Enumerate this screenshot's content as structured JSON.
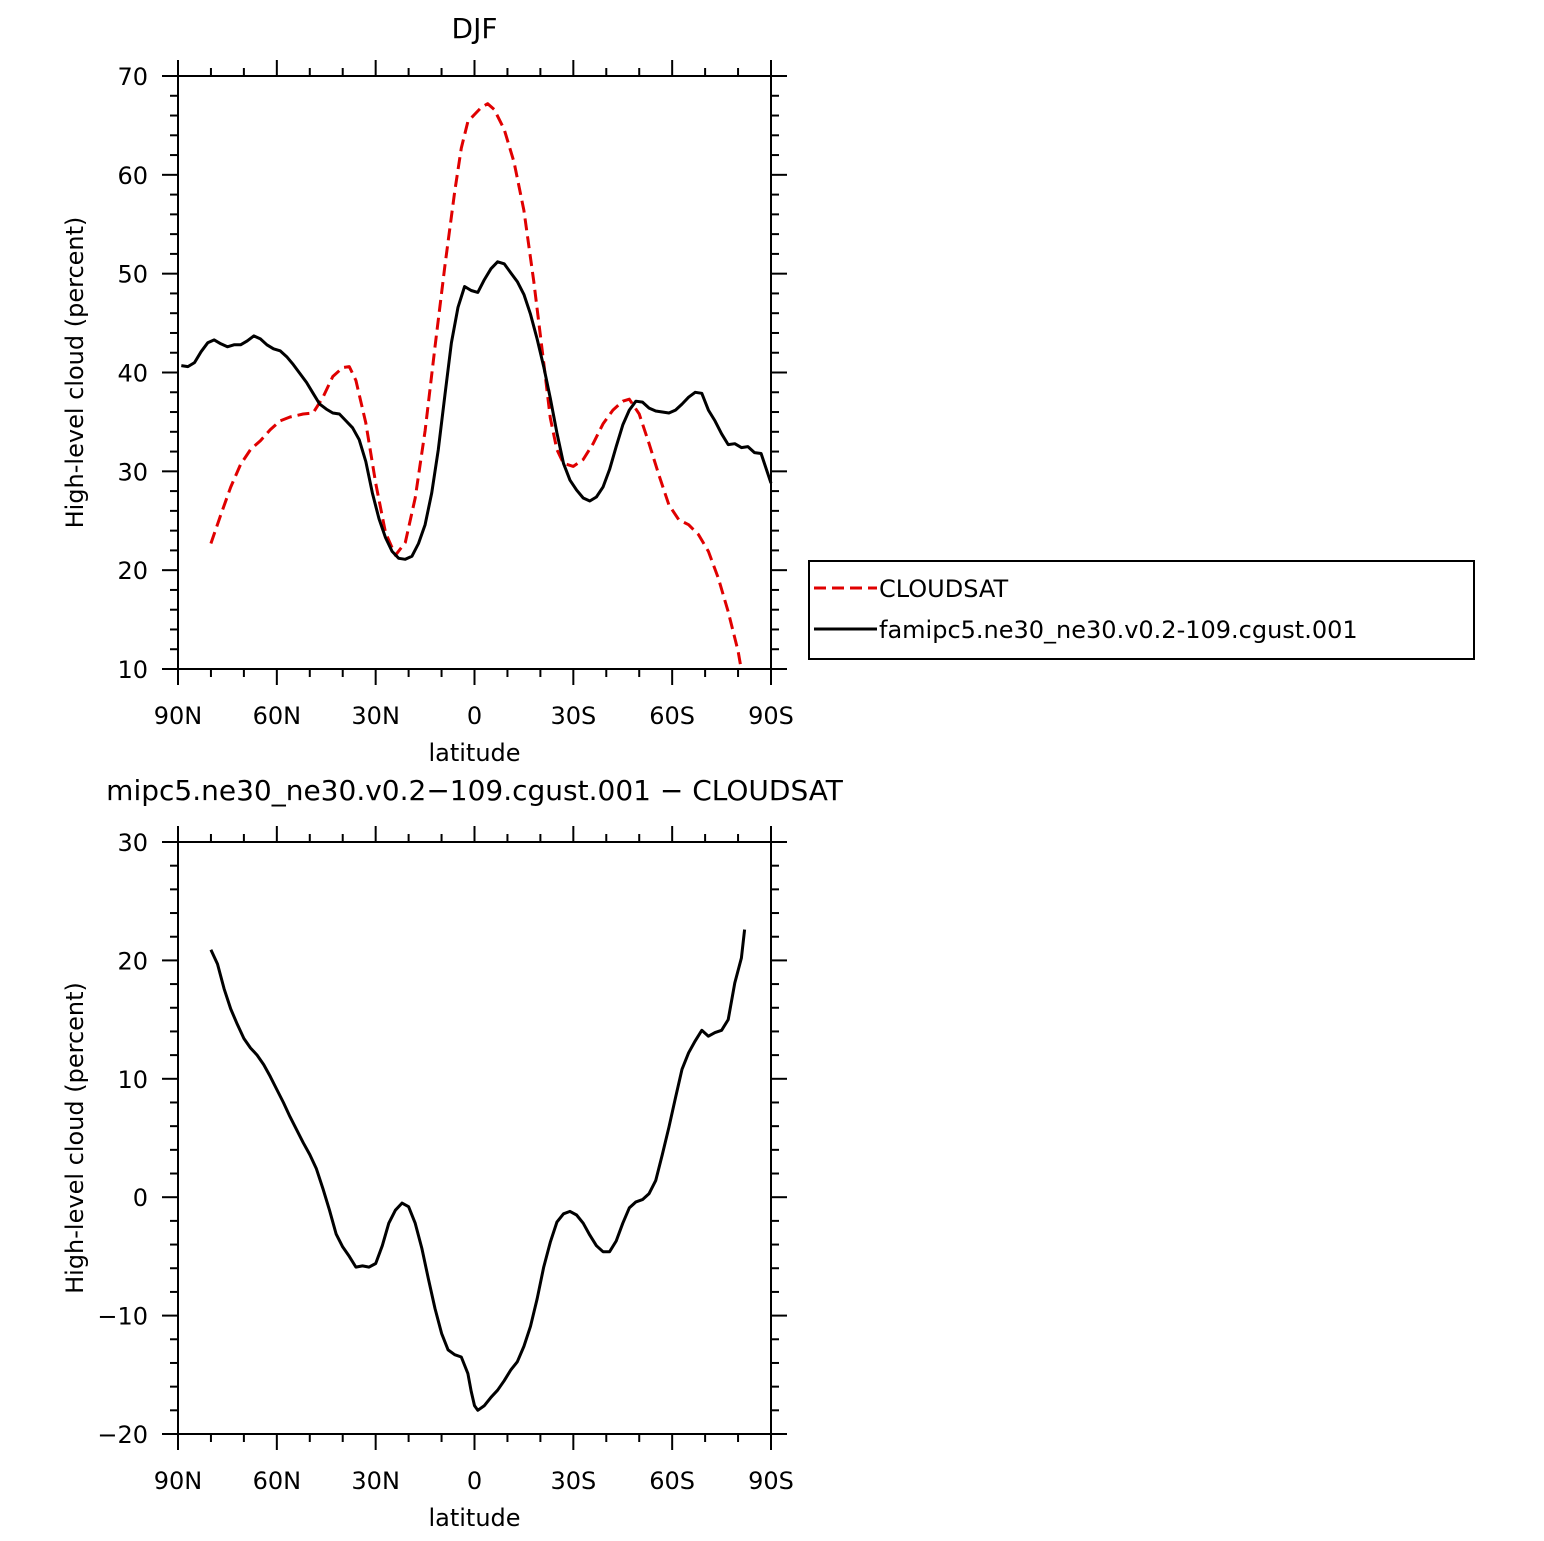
{
  "chart_data": [
    {
      "type": "line",
      "title": "DJF",
      "xlabel": "latitude",
      "ylabel": "High-level cloud (percent)",
      "xlim": [
        -90,
        90
      ],
      "ylim": [
        10,
        70
      ],
      "x_ticks": [
        {
          "value": -90,
          "label": "90N"
        },
        {
          "value": -60,
          "label": "60N"
        },
        {
          "value": -30,
          "label": "30N"
        },
        {
          "value": 0,
          "label": "0"
        },
        {
          "value": 30,
          "label": "30S"
        },
        {
          "value": 60,
          "label": "60S"
        },
        {
          "value": 90,
          "label": "90S"
        }
      ],
      "y_ticks": [
        {
          "value": 10,
          "label": "10"
        },
        {
          "value": 20,
          "label": "20"
        },
        {
          "value": 30,
          "label": "30"
        },
        {
          "value": 40,
          "label": "40"
        },
        {
          "value": 50,
          "label": "50"
        },
        {
          "value": 60,
          "label": "60"
        },
        {
          "value": 70,
          "label": "70"
        }
      ],
      "legend": "right",
      "series": [
        {
          "name": "CLOUDSAT",
          "color": "#e00000",
          "style": "dashed",
          "points": [
            [
              -80,
              22.7
            ],
            [
              -77,
              25.6
            ],
            [
              -74,
              28.4
            ],
            [
              -71,
              30.7
            ],
            [
              -68,
              32.2
            ],
            [
              -65,
              33.1
            ],
            [
              -62,
              34.2
            ],
            [
              -59,
              35.1
            ],
            [
              -56,
              35.5
            ],
            [
              -52,
              35.8
            ],
            [
              -49,
              35.9
            ],
            [
              -46,
              37.5
            ],
            [
              -43,
              39.6
            ],
            [
              -40,
              40.5
            ],
            [
              -38,
              40.6
            ],
            [
              -36,
              39.2
            ],
            [
              -33,
              34.9
            ],
            [
              -30,
              28.8
            ],
            [
              -27,
              23.8
            ],
            [
              -24,
              21.5
            ],
            [
              -21,
              22.8
            ],
            [
              -18,
              27.3
            ],
            [
              -15,
              34.1
            ],
            [
              -12,
              42.6
            ],
            [
              -9,
              50.8
            ],
            [
              -6,
              58.3
            ],
            [
              -4,
              62.7
            ],
            [
              -2,
              65.4
            ],
            [
              0,
              66.1
            ],
            [
              2,
              66.8
            ],
            [
              4,
              67.2
            ],
            [
              6,
              66.6
            ],
            [
              9,
              64.6
            ],
            [
              12,
              61.3
            ],
            [
              15,
              56.4
            ],
            [
              18,
              49.2
            ],
            [
              21,
              41.0
            ],
            [
              23,
              35.4
            ],
            [
              25,
              32.2
            ],
            [
              27,
              30.8
            ],
            [
              30,
              30.5
            ],
            [
              33,
              31.2
            ],
            [
              36,
              32.8
            ],
            [
              39,
              34.8
            ],
            [
              42,
              36.2
            ],
            [
              45,
              37.1
            ],
            [
              47,
              37.3
            ],
            [
              50,
              35.8
            ],
            [
              53,
              32.8
            ],
            [
              56,
              29.6
            ],
            [
              59,
              26.6
            ],
            [
              62,
              25.1
            ],
            [
              65,
              24.6
            ],
            [
              68,
              23.6
            ],
            [
              71,
              21.9
            ],
            [
              74,
              19.2
            ],
            [
              77,
              15.8
            ],
            [
              80,
              11.8
            ],
            [
              81,
              9.9
            ]
          ]
        },
        {
          "name": "famipc5.ne30_ne30.v0.2-109.cgust.001",
          "color": "#000000",
          "style": "solid",
          "points": [
            [
              -89,
              40.7
            ],
            [
              -87,
              40.6
            ],
            [
              -85,
              41.0
            ],
            [
              -83,
              42.1
            ],
            [
              -81,
              43.0
            ],
            [
              -79,
              43.3
            ],
            [
              -77,
              42.9
            ],
            [
              -75,
              42.6
            ],
            [
              -73,
              42.8
            ],
            [
              -71,
              42.8
            ],
            [
              -69,
              43.2
            ],
            [
              -67,
              43.7
            ],
            [
              -65,
              43.4
            ],
            [
              -63,
              42.8
            ],
            [
              -61,
              42.4
            ],
            [
              -59,
              42.2
            ],
            [
              -57,
              41.6
            ],
            [
              -55,
              40.8
            ],
            [
              -53,
              39.9
            ],
            [
              -51,
              39.0
            ],
            [
              -49,
              37.9
            ],
            [
              -47,
              36.8
            ],
            [
              -45,
              36.3
            ],
            [
              -43,
              35.9
            ],
            [
              -41,
              35.8
            ],
            [
              -39,
              35.1
            ],
            [
              -37,
              34.4
            ],
            [
              -35,
              33.2
            ],
            [
              -33,
              31.0
            ],
            [
              -31,
              27.8
            ],
            [
              -29,
              25.2
            ],
            [
              -27,
              23.3
            ],
            [
              -25,
              21.9
            ],
            [
              -23,
              21.2
            ],
            [
              -21,
              21.1
            ],
            [
              -19,
              21.4
            ],
            [
              -17,
              22.7
            ],
            [
              -15,
              24.6
            ],
            [
              -13,
              27.8
            ],
            [
              -11,
              32.2
            ],
            [
              -9,
              37.7
            ],
            [
              -7,
              43.0
            ],
            [
              -5,
              46.6
            ],
            [
              -3,
              48.7
            ],
            [
              -1,
              48.3
            ],
            [
              1,
              48.1
            ],
            [
              3,
              49.4
            ],
            [
              5,
              50.5
            ],
            [
              7,
              51.2
            ],
            [
              9,
              51.0
            ],
            [
              11,
              50.1
            ],
            [
              13,
              49.2
            ],
            [
              15,
              47.9
            ],
            [
              17,
              45.9
            ],
            [
              19,
              43.4
            ],
            [
              21,
              40.6
            ],
            [
              23,
              37.4
            ],
            [
              25,
              33.9
            ],
            [
              27,
              30.8
            ],
            [
              29,
              29.1
            ],
            [
              31,
              28.1
            ],
            [
              33,
              27.3
            ],
            [
              35,
              27.0
            ],
            [
              37,
              27.4
            ],
            [
              39,
              28.4
            ],
            [
              41,
              30.2
            ],
            [
              43,
              32.5
            ],
            [
              45,
              34.7
            ],
            [
              47,
              36.2
            ],
            [
              49,
              37.1
            ],
            [
              51,
              37.0
            ],
            [
              53,
              36.4
            ],
            [
              55,
              36.1
            ],
            [
              57,
              36.0
            ],
            [
              59,
              35.9
            ],
            [
              61,
              36.2
            ],
            [
              63,
              36.8
            ],
            [
              65,
              37.5
            ],
            [
              67,
              38.0
            ],
            [
              69,
              37.9
            ],
            [
              71,
              36.2
            ],
            [
              73,
              35.1
            ],
            [
              75,
              33.8
            ],
            [
              77,
              32.7
            ],
            [
              79,
              32.8
            ],
            [
              81,
              32.4
            ],
            [
              83,
              32.5
            ],
            [
              85,
              31.9
            ],
            [
              87,
              31.8
            ],
            [
              89,
              29.8
            ],
            [
              90,
              28.8
            ]
          ]
        }
      ]
    },
    {
      "type": "line",
      "title": "mipc5.ne30_ne30.v0.2−109.cgust.001 − CLOUDSAT",
      "xlabel": "latitude",
      "ylabel": "High-level cloud (percent)",
      "xlim": [
        -90,
        90
      ],
      "ylim": [
        -20,
        30
      ],
      "x_ticks": [
        {
          "value": -90,
          "label": "90N"
        },
        {
          "value": -60,
          "label": "60N"
        },
        {
          "value": -30,
          "label": "30N"
        },
        {
          "value": 0,
          "label": "0"
        },
        {
          "value": 30,
          "label": "30S"
        },
        {
          "value": 60,
          "label": "60S"
        },
        {
          "value": 90,
          "label": "90S"
        }
      ],
      "y_ticks": [
        {
          "value": -20,
          "label": "−20"
        },
        {
          "value": -10,
          "label": "−10"
        },
        {
          "value": 0,
          "label": "0"
        },
        {
          "value": 10,
          "label": "10"
        },
        {
          "value": 20,
          "label": "20"
        },
        {
          "value": 30,
          "label": "30"
        }
      ],
      "series": [
        {
          "color": "#000000",
          "style": "solid",
          "points": [
            [
              -80,
              20.9
            ],
            [
              -78,
              19.7
            ],
            [
              -76,
              17.6
            ],
            [
              -74,
              15.9
            ],
            [
              -72,
              14.6
            ],
            [
              -70,
              13.4
            ],
            [
              -68,
              12.6
            ],
            [
              -66,
              12.0
            ],
            [
              -64,
              11.2
            ],
            [
              -62,
              10.2
            ],
            [
              -60,
              9.1
            ],
            [
              -58,
              8.0
            ],
            [
              -56,
              6.8
            ],
            [
              -54,
              5.7
            ],
            [
              -52,
              4.6
            ],
            [
              -50,
              3.6
            ],
            [
              -48,
              2.4
            ],
            [
              -46,
              0.7
            ],
            [
              -44,
              -1.1
            ],
            [
              -42,
              -3.1
            ],
            [
              -40,
              -4.2
            ],
            [
              -38,
              -5.0
            ],
            [
              -36,
              -5.9
            ],
            [
              -34,
              -5.8
            ],
            [
              -32,
              -5.9
            ],
            [
              -30,
              -5.6
            ],
            [
              -28,
              -4.1
            ],
            [
              -26,
              -2.2
            ],
            [
              -24,
              -1.1
            ],
            [
              -22,
              -0.5
            ],
            [
              -20,
              -0.8
            ],
            [
              -18,
              -2.2
            ],
            [
              -16,
              -4.3
            ],
            [
              -14,
              -6.9
            ],
            [
              -12,
              -9.4
            ],
            [
              -10,
              -11.5
            ],
            [
              -8,
              -12.9
            ],
            [
              -6,
              -13.3
            ],
            [
              -4,
              -13.5
            ],
            [
              -2,
              -14.9
            ],
            [
              -1,
              -16.4
            ],
            [
              0,
              -17.6
            ],
            [
              1,
              -18.0
            ],
            [
              3,
              -17.6
            ],
            [
              5,
              -16.9
            ],
            [
              7,
              -16.3
            ],
            [
              9,
              -15.5
            ],
            [
              11,
              -14.6
            ],
            [
              13,
              -13.9
            ],
            [
              15,
              -12.6
            ],
            [
              17,
              -10.9
            ],
            [
              19,
              -8.6
            ],
            [
              21,
              -5.9
            ],
            [
              23,
              -3.8
            ],
            [
              25,
              -2.1
            ],
            [
              27,
              -1.4
            ],
            [
              29,
              -1.2
            ],
            [
              31,
              -1.5
            ],
            [
              33,
              -2.2
            ],
            [
              35,
              -3.2
            ],
            [
              37,
              -4.1
            ],
            [
              39,
              -4.6
            ],
            [
              41,
              -4.6
            ],
            [
              43,
              -3.7
            ],
            [
              45,
              -2.2
            ],
            [
              47,
              -0.9
            ],
            [
              49,
              -0.4
            ],
            [
              51,
              -0.2
            ],
            [
              53,
              0.3
            ],
            [
              55,
              1.4
            ],
            [
              57,
              3.6
            ],
            [
              59,
              5.9
            ],
            [
              61,
              8.4
            ],
            [
              63,
              10.8
            ],
            [
              65,
              12.2
            ],
            [
              67,
              13.2
            ],
            [
              69,
              14.1
            ],
            [
              71,
              13.6
            ],
            [
              73,
              13.9
            ],
            [
              75,
              14.1
            ],
            [
              77,
              15.0
            ],
            [
              79,
              18.1
            ],
            [
              81,
              20.2
            ],
            [
              82,
              22.6
            ]
          ]
        }
      ]
    }
  ]
}
